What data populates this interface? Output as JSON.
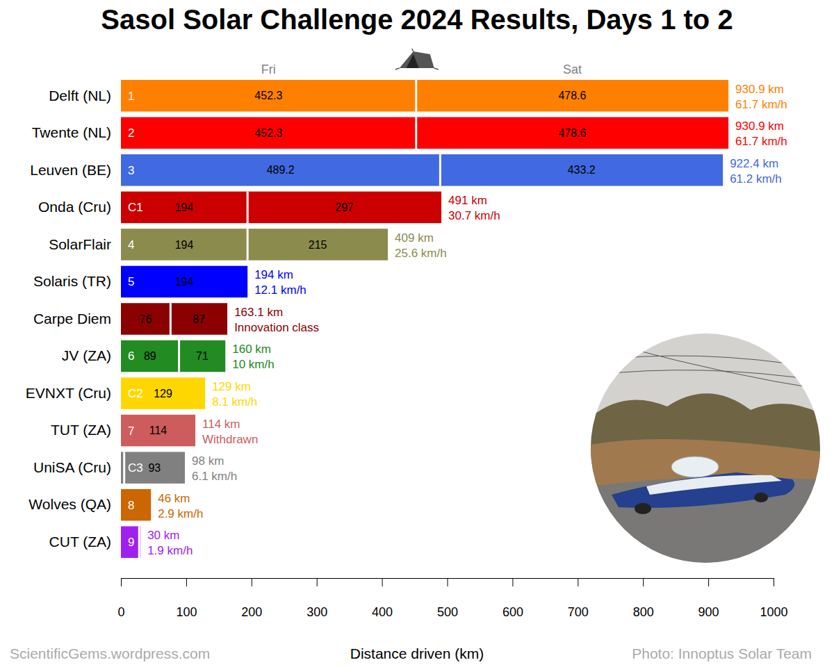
{
  "chart_data": {
    "type": "bar",
    "orientation": "horizontal",
    "stacked": true,
    "data_labels": true,
    "title": "Sasol Solar Challenge 2024 Results, Days 1 to 2",
    "x_label": "Distance driven (km)",
    "categories": [
      "Delft (NL)",
      "Twente (NL)",
      "Leuven (BE)",
      "Onda (Cru)",
      "SolarFlair",
      "Solaris (TR)",
      "Carpe Diem",
      "JV (ZA)",
      "EVNXT (Cru)",
      "TUT (ZA)",
      "UniSA (Cru)",
      "Wolves (QA)",
      "CUT (ZA)"
    ],
    "series": [
      {
        "name": "Fri",
        "values": [
          452.3,
          452.3,
          489.2,
          194,
          194,
          194,
          76,
          89,
          129,
          114,
          5,
          46,
          28
        ],
        "value_labels": [
          "452.3",
          "452.3",
          "489.2",
          "194",
          "194",
          "194",
          "76",
          "89",
          "129",
          "114",
          null,
          null,
          null
        ]
      },
      {
        "name": "Sat",
        "values": [
          478.6,
          478.6,
          433.2,
          297,
          215,
          null,
          87,
          71,
          null,
          null,
          93,
          null,
          2
        ],
        "value_labels": [
          "478.6",
          "478.6",
          "433.2",
          "297",
          "215",
          null,
          "87",
          "71",
          null,
          null,
          "93",
          null,
          null
        ]
      }
    ],
    "colors": [
      "#ff8000",
      "#ff0000",
      "#4169e1",
      "#cc0000",
      "#8b8b4e",
      "#0000ff",
      "#8b0000",
      "#228b22",
      "#ffd700",
      "#cd5c5c",
      "#808080",
      "#cc6600",
      "#a020f0"
    ],
    "ranks": [
      "1",
      "2",
      "3",
      "C1",
      "4",
      "5",
      null,
      "6",
      "C2",
      "7",
      "C3",
      "8",
      "9"
    ],
    "totals": [
      930.9,
      930.9,
      922.4,
      491,
      409,
      194,
      163.1,
      160,
      129,
      114,
      98,
      46,
      30
    ],
    "total_labels": [
      "930.9 km",
      "930.9 km",
      "922.4 km",
      "491 km",
      "409 km",
      "194 km",
      "163.1 km",
      "160 km",
      "129 km",
      "114 km",
      "98 km",
      "46 km",
      "30 km"
    ],
    "notes": [
      "61.7 km/h",
      "61.7 km/h",
      "61.2 km/h",
      "30.7 km/h",
      "25.6 km/h",
      "12.1 km/h",
      "Innovation class",
      "10 km/h",
      "8.1 km/h",
      "Withdrawn",
      "6.1 km/h",
      "2.9 km/h",
      "1.9 km/h"
    ],
    "xlim": [
      0,
      1000
    ],
    "xticks": [
      0,
      100,
      200,
      300,
      400,
      500,
      600,
      700,
      800,
      900,
      1000
    ],
    "credits": {
      "left": "ScientificGems.wordpress.com",
      "right": "Photo: Innoptus Solar Team"
    }
  }
}
